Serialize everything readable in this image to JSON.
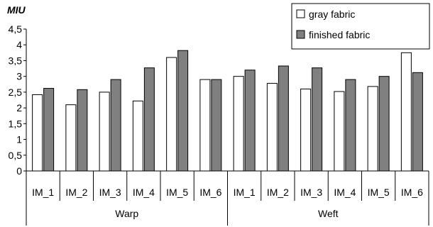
{
  "chart_data": {
    "type": "bar",
    "ylabel": "MIU",
    "ylim": [
      0,
      4.5
    ],
    "yticks": [
      "0",
      "0,5",
      "1",
      "1,5",
      "2",
      "2,5",
      "3",
      "3,5",
      "4",
      "4,5"
    ],
    "groups": [
      {
        "label": "Warp",
        "categories": [
          "IM_1",
          "IM_2",
          "IM_3",
          "IM_4",
          "IM_5",
          "IM_6"
        ]
      },
      {
        "label": "Weft",
        "categories": [
          "IM_1",
          "IM_2",
          "IM_3",
          "IM_4",
          "IM_5",
          "IM_6"
        ]
      }
    ],
    "series": [
      {
        "name": "gray fabric",
        "color": "#ffffff",
        "values": [
          2.42,
          2.1,
          2.5,
          2.22,
          3.6,
          2.9,
          3.0,
          2.78,
          2.6,
          2.52,
          2.68,
          3.75
        ]
      },
      {
        "name": "finished fabric",
        "color": "#808080",
        "values": [
          2.62,
          2.58,
          2.9,
          3.27,
          3.82,
          2.9,
          3.2,
          3.33,
          3.27,
          2.9,
          3.0,
          3.12
        ]
      }
    ],
    "grid": false,
    "legend_position": "top-right"
  }
}
